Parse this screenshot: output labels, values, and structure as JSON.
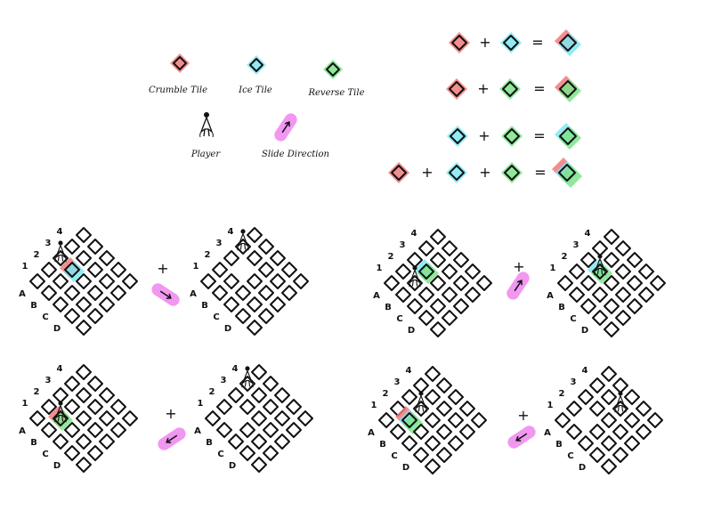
{
  "colors": {
    "crumble": "#f07a7a",
    "ice": "#7fe6f2",
    "reverse": "#7ee38a",
    "slide": "#f08cf0",
    "ink": "#111111"
  },
  "legend": {
    "crumble_label": "Crumble Tile",
    "ice_label": "Ice Tile",
    "reverse_label": "Reverse Tile",
    "player_label": "Player",
    "slide_label": "Slide Direction"
  },
  "combos": [
    {
      "inputs": [
        "crumble",
        "ice"
      ],
      "plus": "+",
      "equals": "=",
      "result": [
        "crumble",
        "ice"
      ]
    },
    {
      "inputs": [
        "crumble",
        "reverse"
      ],
      "plus": "+",
      "equals": "=",
      "result": [
        "crumble",
        "reverse"
      ]
    },
    {
      "inputs": [
        "ice",
        "reverse"
      ],
      "plus": "+",
      "equals": "=",
      "result": [
        "ice",
        "reverse"
      ]
    },
    {
      "inputs": [
        "crumble",
        "ice",
        "reverse"
      ],
      "plus": "+",
      "equals": "=",
      "result": [
        "crumble",
        "ice",
        "reverse"
      ]
    }
  ],
  "grid": {
    "cols": [
      "1",
      "2",
      "3",
      "4"
    ],
    "rows": [
      "A",
      "B",
      "C",
      "D"
    ]
  },
  "examples": [
    {
      "plus": "+",
      "slide": "down-right",
      "before": {
        "player": [
          0,
          2
        ],
        "special": {
          "cell": [
            1,
            2
          ],
          "kinds": [
            "crumble",
            "ice"
          ]
        }
      },
      "after": {
        "player": [
          0,
          3
        ],
        "missing": [
          1,
          2
        ]
      }
    },
    {
      "plus": "+",
      "slide": "up-right",
      "before": {
        "player": [
          1,
          1
        ],
        "special": {
          "cell": [
            1,
            2
          ],
          "kinds": [
            "ice",
            "reverse"
          ]
        }
      },
      "after": {
        "player": [
          1,
          2
        ],
        "special": {
          "cell": [
            1,
            2
          ],
          "kinds": [
            "ice",
            "reverse"
          ]
        }
      }
    },
    {
      "plus": "+",
      "slide": "down-left",
      "before": {
        "player": [
          1,
          1
        ],
        "special": {
          "cell": [
            1,
            1
          ],
          "kinds": [
            "crumble",
            "reverse"
          ]
        }
      },
      "after": {
        "player": [
          0,
          3
        ],
        "missing": [
          1,
          1
        ]
      }
    },
    {
      "plus": "+",
      "slide": "down-left",
      "before": {
        "player": [
          1,
          2
        ],
        "special": {
          "cell": [
            1,
            1
          ],
          "kinds": [
            "crumble",
            "ice",
            "reverse"
          ]
        }
      },
      "after": {
        "player": [
          2,
          3
        ],
        "missing": [
          1,
          1
        ]
      }
    }
  ]
}
